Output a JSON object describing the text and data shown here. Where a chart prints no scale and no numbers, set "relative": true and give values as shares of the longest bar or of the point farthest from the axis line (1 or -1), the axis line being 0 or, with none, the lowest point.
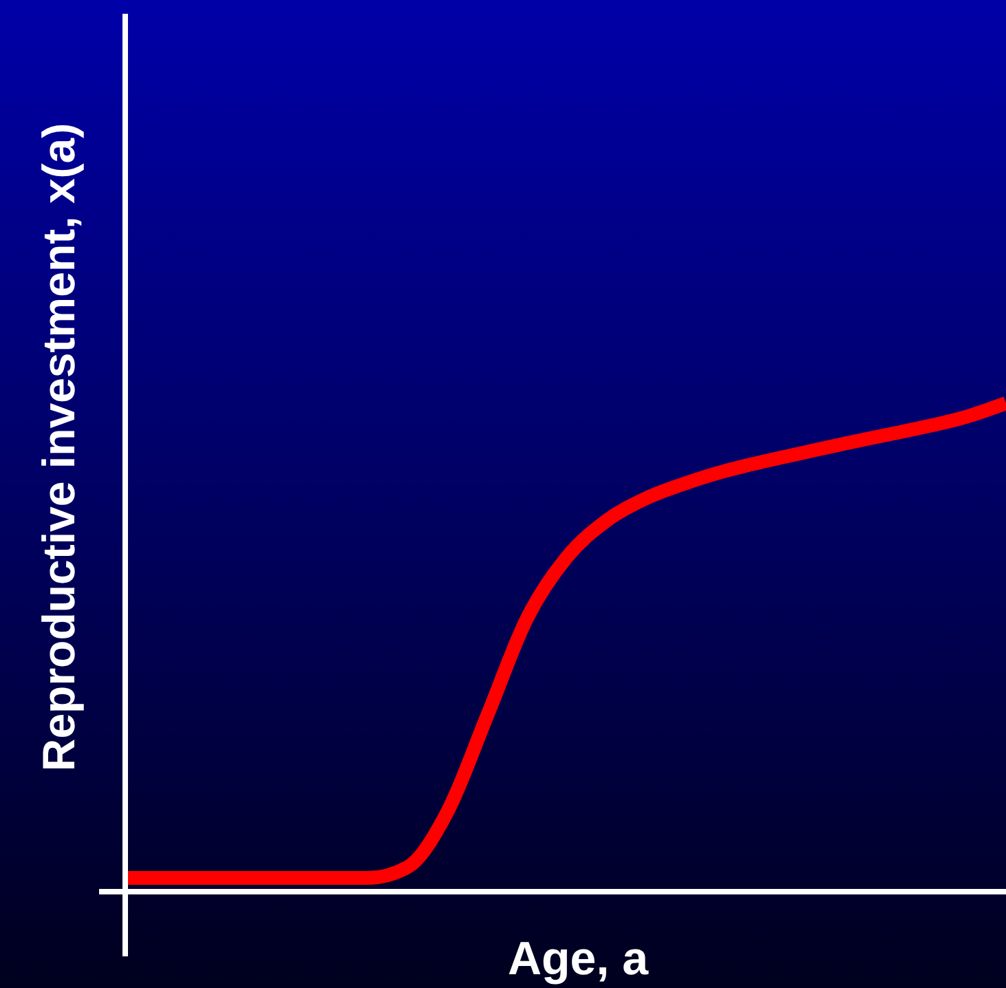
{
  "chart_data": {
    "type": "line",
    "relative": true,
    "xlabel": "Age, a",
    "ylabel": "Reproductive investment, x(a)",
    "categories": [
      null,
      null,
      null,
      null,
      null,
      null,
      null,
      null,
      null,
      null,
      null,
      null,
      null,
      null,
      null,
      null,
      null,
      null,
      null,
      null,
      null,
      null,
      null
    ],
    "series": [
      {
        "color": "#ff0000",
        "values": [
          0.028,
          0.028,
          0.028,
          0.028,
          0.028,
          0.028,
          0.028,
          0.05,
          0.163,
          0.36,
          0.56,
          0.685,
          0.76,
          0.806,
          0.837,
          0.862,
          0.882,
          0.9,
          0.918,
          0.935,
          0.952,
          0.972,
          1.0
        ]
      }
    ],
    "grid": false,
    "marker": "none",
    "line_style": "solid"
  }
}
